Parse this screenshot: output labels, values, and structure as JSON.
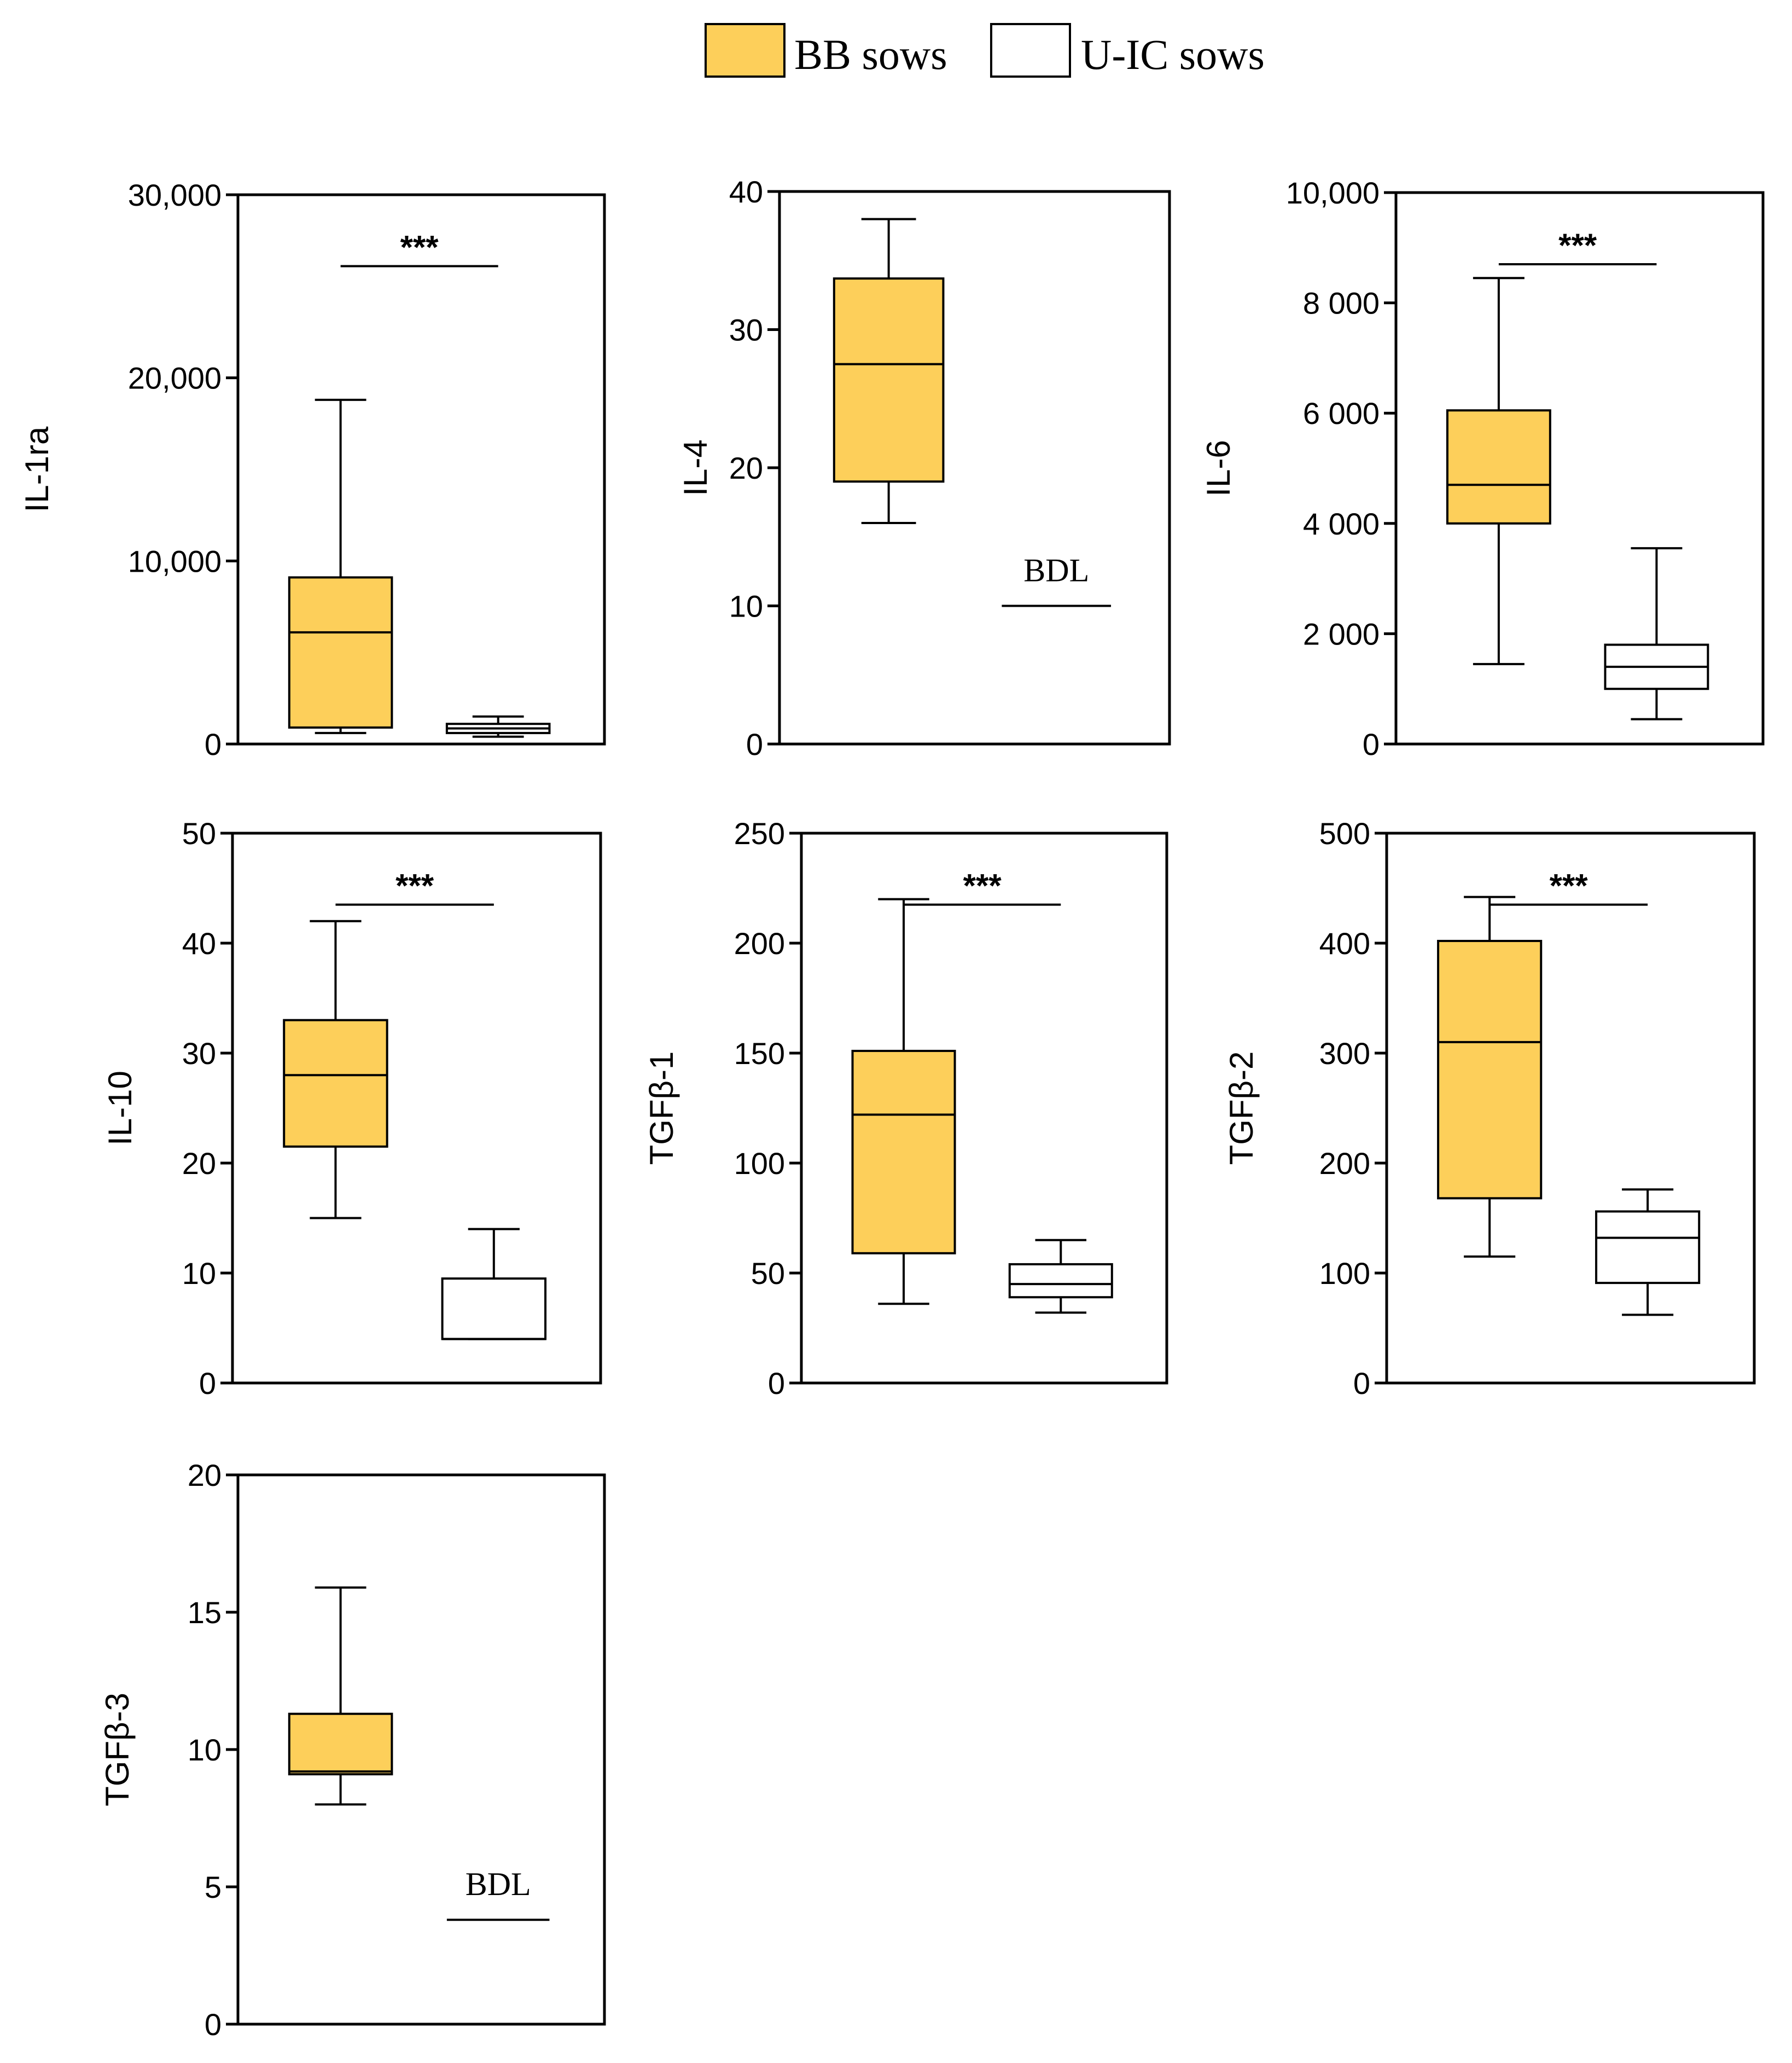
{
  "legend": {
    "items": [
      {
        "label": "BB sows",
        "color": "#FDCF5A"
      },
      {
        "label": "U-IC sows",
        "color": "#FFFFFF"
      }
    ]
  },
  "colors": {
    "bb_fill": "#FDCF5A",
    "uic_fill": "#FFFFFF",
    "stroke": "#000000"
  },
  "chart_data": [
    {
      "type": "box",
      "ylabel": "IL-1ra",
      "ylim": [
        0,
        30000
      ],
      "ticks": [
        0,
        10000,
        20000,
        30000
      ],
      "tick_labels": [
        "0",
        "10,000",
        "20,000",
        "30,000"
      ],
      "significance": "***",
      "series": [
        {
          "name": "BB sows",
          "whisker_low": 600,
          "q1": 900,
          "median": 6100,
          "q3": 9100,
          "whisker_high": 18800
        },
        {
          "name": "U-IC sows",
          "whisker_low": 400,
          "q1": 600,
          "median": 850,
          "q3": 1100,
          "whisker_high": 1500
        }
      ]
    },
    {
      "type": "box",
      "ylabel": "IL-4",
      "ylim": [
        0,
        40
      ],
      "ticks": [
        0,
        10,
        20,
        30,
        40
      ],
      "tick_labels": [
        "0",
        "10",
        "20",
        "30",
        "40"
      ],
      "significance": "",
      "series": [
        {
          "name": "BB sows",
          "whisker_low": 16,
          "q1": 19,
          "median": 27.5,
          "q3": 33.7,
          "whisker_high": 38
        },
        {
          "name": "U-IC sows",
          "bdl": true,
          "bdl_label": "BDL",
          "bdl_value": 10
        }
      ]
    },
    {
      "type": "box",
      "ylabel": "IL-6",
      "ylim": [
        0,
        10000
      ],
      "ticks": [
        0,
        2000,
        4000,
        6000,
        8000,
        10000
      ],
      "tick_labels": [
        "0",
        "2 000",
        "4 000",
        "6 000",
        "8 000",
        "10,000"
      ],
      "significance": "***",
      "series": [
        {
          "name": "BB sows",
          "whisker_low": 1450,
          "q1": 4000,
          "median": 4700,
          "q3": 6050,
          "whisker_high": 8450
        },
        {
          "name": "U-IC sows",
          "whisker_low": 450,
          "q1": 1000,
          "median": 1400,
          "q3": 1800,
          "whisker_high": 3550
        }
      ]
    },
    {
      "type": "box",
      "ylabel": "IL-10",
      "ylim": [
        0,
        50
      ],
      "ticks": [
        0,
        10,
        20,
        30,
        40,
        50
      ],
      "tick_labels": [
        "0",
        "10",
        "20",
        "30",
        "40",
        "50"
      ],
      "significance": "***",
      "series": [
        {
          "name": "BB sows",
          "whisker_low": 15,
          "q1": 21.5,
          "median": 28,
          "q3": 33,
          "whisker_high": 42
        },
        {
          "name": "U-IC sows",
          "whisker_low": 4,
          "q1": 4,
          "median": 4,
          "q3": 9.5,
          "whisker_high": 14
        }
      ]
    },
    {
      "type": "box",
      "ylabel": "TGFβ-1",
      "ylim": [
        0,
        250
      ],
      "ticks": [
        0,
        50,
        100,
        150,
        200,
        250
      ],
      "tick_labels": [
        "0",
        "50",
        "100",
        "150",
        "200",
        "250"
      ],
      "significance": "***",
      "series": [
        {
          "name": "BB sows",
          "whisker_low": 36,
          "q1": 59,
          "median": 122,
          "q3": 151,
          "whisker_high": 220
        },
        {
          "name": "U-IC sows",
          "whisker_low": 32,
          "q1": 39,
          "median": 45,
          "q3": 54,
          "whisker_high": 65
        }
      ]
    },
    {
      "type": "box",
      "ylabel": "TGFβ-2",
      "ylim": [
        0,
        500
      ],
      "ticks": [
        0,
        100,
        200,
        300,
        400,
        500
      ],
      "tick_labels": [
        "0",
        "100",
        "200",
        "300",
        "400",
        "500"
      ],
      "significance": "***",
      "series": [
        {
          "name": "BB sows",
          "whisker_low": 115,
          "q1": 168,
          "median": 310,
          "q3": 402,
          "whisker_high": 442
        },
        {
          "name": "U-IC sows",
          "whisker_low": 62,
          "q1": 91,
          "median": 132,
          "q3": 156,
          "whisker_high": 176
        }
      ]
    },
    {
      "type": "box",
      "ylabel": "TGFβ-3",
      "ylim": [
        0,
        20
      ],
      "ticks": [
        0,
        5,
        10,
        15,
        20
      ],
      "tick_labels": [
        "0",
        "5",
        "10",
        "15",
        "20"
      ],
      "significance": "",
      "series": [
        {
          "name": "BB sows",
          "whisker_low": 8,
          "q1": 9.1,
          "median": 9.2,
          "q3": 11.3,
          "whisker_high": 15.9
        },
        {
          "name": "U-IC sows",
          "bdl": true,
          "bdl_label": "BDL",
          "bdl_value": 3.8
        }
      ]
    }
  ]
}
